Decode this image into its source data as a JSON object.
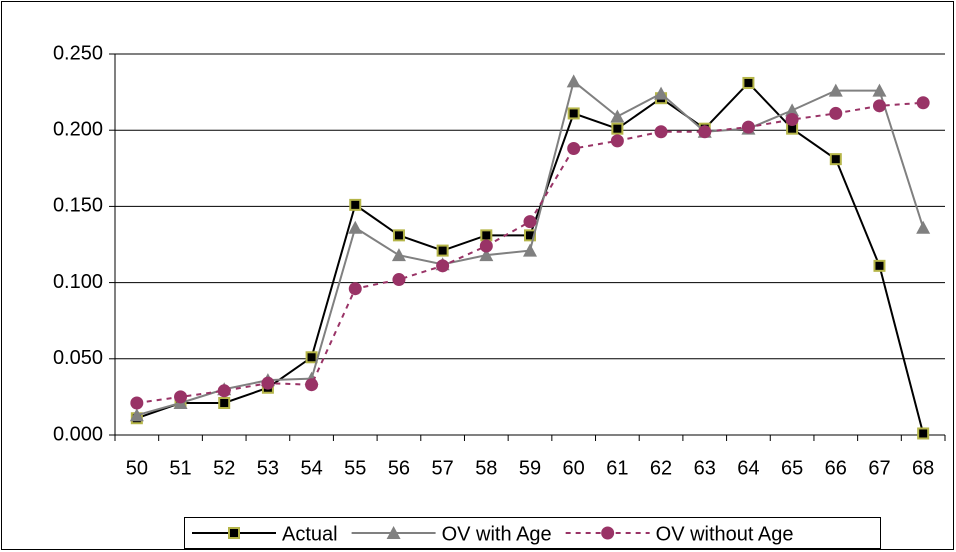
{
  "chart_data": {
    "type": "line",
    "categories": [
      "50",
      "51",
      "52",
      "53",
      "54",
      "55",
      "56",
      "57",
      "58",
      "59",
      "60",
      "61",
      "62",
      "63",
      "64",
      "65",
      "66",
      "67",
      "68"
    ],
    "series": [
      {
        "name": "Actual",
        "color": "#000000",
        "marker": "square",
        "line_style": "solid",
        "values": [
          0.011,
          0.021,
          0.021,
          0.031,
          0.051,
          0.151,
          0.131,
          0.121,
          0.131,
          0.131,
          0.211,
          0.201,
          0.221,
          0.201,
          0.231,
          0.201,
          0.181,
          0.111,
          0.001
        ]
      },
      {
        "name": "OV with Age",
        "color": "#808080",
        "marker": "triangle",
        "line_style": "solid",
        "values": [
          0.013,
          0.021,
          0.03,
          0.036,
          0.037,
          0.136,
          0.118,
          0.112,
          0.118,
          0.121,
          0.232,
          0.209,
          0.224,
          0.199,
          0.201,
          0.213,
          0.226,
          0.226,
          0.136
        ]
      },
      {
        "name": "OV without Age",
        "color": "#993366",
        "marker": "circle",
        "line_style": "dashed",
        "values": [
          0.021,
          0.025,
          0.029,
          0.034,
          0.033,
          0.096,
          0.102,
          0.111,
          0.124,
          0.14,
          0.188,
          0.193,
          0.199,
          0.199,
          0.202,
          0.207,
          0.211,
          0.216,
          0.218
        ]
      }
    ],
    "ylim": [
      0,
      0.25
    ],
    "yticks": [
      {
        "value": 0,
        "label": "0.000"
      },
      {
        "value": 0.05,
        "label": "0.050"
      },
      {
        "value": 0.1,
        "label": "0.100"
      },
      {
        "value": 0.15,
        "label": "0.150"
      },
      {
        "value": 0.2,
        "label": "0.200"
      },
      {
        "value": 0.25,
        "label": "0.250"
      }
    ],
    "grid": true,
    "legend": "bottom"
  }
}
